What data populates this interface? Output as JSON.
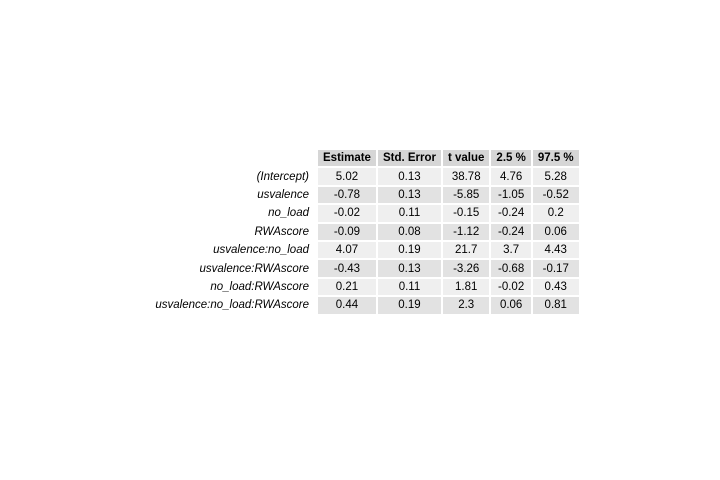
{
  "chart_data": {
    "type": "table",
    "columns": [
      "Estimate",
      "Std. Error",
      "t value",
      "2.5 %",
      "97.5 %"
    ],
    "rows": [
      {
        "term": "(Intercept)",
        "values": [
          "5.02",
          "0.13",
          "38.78",
          "4.76",
          "5.28"
        ]
      },
      {
        "term": "usvalence",
        "values": [
          "-0.78",
          "0.13",
          "-5.85",
          "-1.05",
          "-0.52"
        ]
      },
      {
        "term": "no_load",
        "values": [
          "-0.02",
          "0.11",
          "-0.15",
          "-0.24",
          "0.2"
        ]
      },
      {
        "term": "RWAscore",
        "values": [
          "-0.09",
          "0.08",
          "-1.12",
          "-0.24",
          "0.06"
        ]
      },
      {
        "term": "usvalence:no_load",
        "values": [
          "4.07",
          "0.19",
          "21.7",
          "3.7",
          "4.43"
        ]
      },
      {
        "term": "usvalence:RWAscore",
        "values": [
          "-0.43",
          "0.13",
          "-3.26",
          "-0.68",
          "-0.17"
        ]
      },
      {
        "term": "no_load:RWAscore",
        "values": [
          "0.21",
          "0.11",
          "1.81",
          "-0.02",
          "0.43"
        ]
      },
      {
        "term": "usvalence:no_load:RWAscore",
        "values": [
          "0.44",
          "0.19",
          "2.3",
          "0.06",
          "0.81"
        ]
      }
    ]
  },
  "colors": {
    "header_bg": "#d6d6d6",
    "row_odd_bg": "#efefef",
    "row_even_bg": "#e2e2e2",
    "text": "#000000"
  }
}
